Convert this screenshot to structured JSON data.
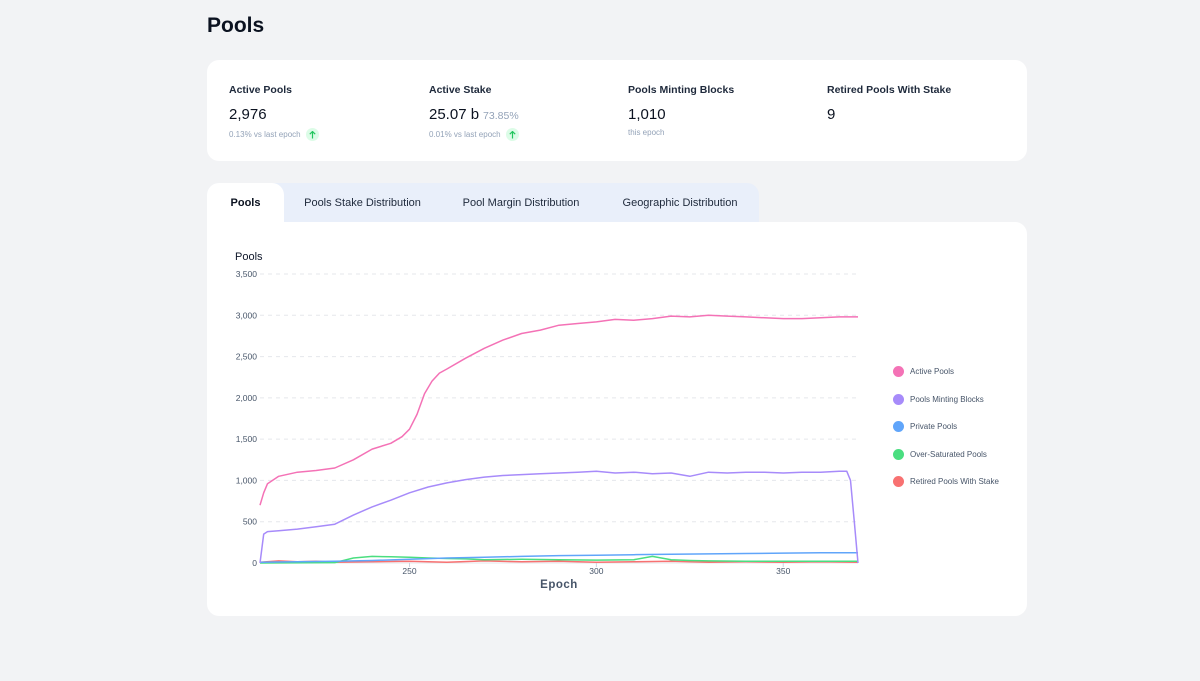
{
  "page": {
    "title": "Pools"
  },
  "stats": [
    {
      "label": "Active Pools",
      "value": "2,976",
      "value_sub": "",
      "sub": "0.13% vs last epoch",
      "trend": "up"
    },
    {
      "label": "Active Stake",
      "value": "25.07 b",
      "value_sub": "73.85%",
      "sub": "0.01% vs last epoch",
      "trend": "up"
    },
    {
      "label": "Pools Minting Blocks",
      "value": "1,010",
      "value_sub": "",
      "sub": "this epoch",
      "trend": ""
    },
    {
      "label": "Retired Pools With Stake",
      "value": "9",
      "value_sub": "",
      "sub": "",
      "trend": ""
    }
  ],
  "tabs": [
    "Pools",
    "Pools Stake Distribution",
    "Pool Margin Distribution",
    "Geographic Distribution"
  ],
  "colors": {
    "active": "#f472b6",
    "minting": "#a78bfa",
    "private": "#60a5fa",
    "oversaturated": "#4ade80",
    "retired": "#f87171",
    "trend_up": "#22c55e"
  },
  "chart_data": {
    "type": "line",
    "ylabel": "Pools",
    "xlabel": "Epoch",
    "xlim": [
      210,
      370
    ],
    "ylim": [
      0,
      3500
    ],
    "x_ticks": [
      250,
      300,
      350
    ],
    "y_ticks": [
      0,
      500,
      1000,
      1500,
      2000,
      2500,
      3000,
      3500
    ],
    "y_tick_labels": [
      "0",
      "500",
      "1,000",
      "1,500",
      "2,000",
      "2,500",
      "3,000",
      "3,500"
    ],
    "grid": true,
    "legend": "right",
    "series": [
      {
        "name": "Active Pools",
        "color": "#f472b6",
        "x": [
          210,
          211,
          212,
          215,
          220,
          225,
          230,
          235,
          240,
          245,
          248,
          250,
          252,
          254,
          256,
          258,
          260,
          265,
          270,
          275,
          280,
          285,
          290,
          295,
          300,
          305,
          310,
          315,
          320,
          325,
          330,
          335,
          340,
          345,
          350,
          355,
          360,
          365,
          370
        ],
        "y": [
          700,
          850,
          960,
          1050,
          1100,
          1120,
          1150,
          1250,
          1380,
          1450,
          1530,
          1620,
          1800,
          2050,
          2200,
          2300,
          2350,
          2480,
          2600,
          2700,
          2780,
          2820,
          2880,
          2900,
          2920,
          2950,
          2940,
          2960,
          2990,
          2980,
          3000,
          2990,
          2980,
          2970,
          2960,
          2960,
          2970,
          2980,
          2980
        ]
      },
      {
        "name": "Pools Minting Blocks",
        "color": "#a78bfa",
        "x": [
          210,
          211,
          212,
          215,
          220,
          225,
          230,
          235,
          240,
          245,
          250,
          255,
          260,
          265,
          270,
          275,
          280,
          285,
          290,
          295,
          300,
          305,
          310,
          315,
          320,
          325,
          330,
          335,
          340,
          345,
          350,
          355,
          360,
          365,
          367,
          368,
          369,
          370
        ],
        "y": [
          0,
          350,
          380,
          390,
          410,
          440,
          470,
          580,
          680,
          760,
          850,
          920,
          970,
          1010,
          1040,
          1060,
          1070,
          1080,
          1090,
          1100,
          1110,
          1090,
          1100,
          1080,
          1090,
          1050,
          1100,
          1090,
          1100,
          1100,
          1090,
          1100,
          1100,
          1110,
          1110,
          1000,
          500,
          0
        ]
      },
      {
        "name": "Private Pools",
        "color": "#60a5fa",
        "x": [
          210,
          230,
          240,
          250,
          260,
          270,
          280,
          290,
          300,
          310,
          320,
          330,
          340,
          350,
          360,
          370
        ],
        "y": [
          10,
          20,
          30,
          45,
          60,
          70,
          80,
          90,
          95,
          100,
          105,
          110,
          115,
          120,
          125,
          125
        ]
      },
      {
        "name": "Over-Saturated Pools",
        "color": "#4ade80",
        "x": [
          210,
          230,
          235,
          240,
          245,
          250,
          255,
          260,
          265,
          270,
          280,
          290,
          300,
          310,
          315,
          320,
          325,
          330,
          340,
          350,
          360,
          370
        ],
        "y": [
          0,
          5,
          60,
          80,
          75,
          70,
          60,
          55,
          50,
          40,
          45,
          40,
          35,
          40,
          80,
          40,
          30,
          25,
          20,
          20,
          20,
          20
        ]
      },
      {
        "name": "Retired Pools With Stake",
        "color": "#f87171",
        "x": [
          210,
          215,
          220,
          225,
          230,
          240,
          250,
          260,
          270,
          280,
          290,
          300,
          310,
          320,
          330,
          340,
          350,
          360,
          370
        ],
        "y": [
          10,
          25,
          15,
          20,
          10,
          15,
          20,
          10,
          25,
          15,
          20,
          10,
          15,
          20,
          10,
          15,
          10,
          15,
          9
        ]
      }
    ]
  }
}
